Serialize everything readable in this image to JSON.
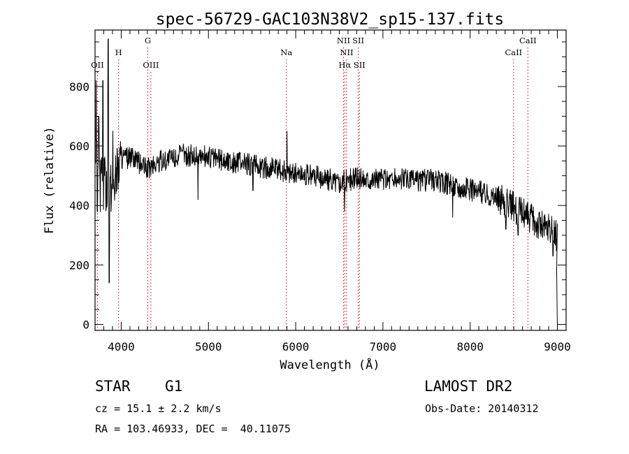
{
  "chart_data": {
    "type": "line",
    "title": "spec-56729-GAC103N38V2_sp15-137.fits",
    "xlabel": "Wavelength (Å)",
    "ylabel": "Flux (relative)",
    "xlim": [
      3700,
      9100
    ],
    "ylim": [
      -20,
      990
    ],
    "xticks": [
      4000,
      5000,
      6000,
      7000,
      8000,
      9000
    ],
    "yticks": [
      0,
      200,
      400,
      600,
      800
    ],
    "line_color": "#000000",
    "marker_color": "#cc0000",
    "lines": [
      {
        "label": "OII",
        "x": 3727,
        "row": 3
      },
      {
        "label": "H",
        "x": 3970,
        "row": 2
      },
      {
        "label": "G",
        "x": 4305,
        "row": 1
      },
      {
        "label": "OIII",
        "x": 4340,
        "row": 3
      },
      {
        "label": "Na",
        "x": 5893,
        "row": 2
      },
      {
        "label": "NII",
        "x": 6548,
        "row": 1
      },
      {
        "label": "NII",
        "x": 6584,
        "row": 2
      },
      {
        "label": "Hα",
        "x": 6563,
        "row": 3
      },
      {
        "label": "SII",
        "x": 6717,
        "row": 1
      },
      {
        "label": "SII",
        "x": 6731,
        "row": 3
      },
      {
        "label": "CaII",
        "x": 8498,
        "row": 2
      },
      {
        "label": "CaII",
        "x": 8662,
        "row": 1
      }
    ],
    "spectrum_envelope": {
      "x": [
        3700,
        3750,
        3800,
        3900,
        4000,
        4100,
        4300,
        4500,
        4700,
        5000,
        5300,
        5600,
        5900,
        6200,
        6500,
        6700,
        7000,
        7300,
        7600,
        7900,
        8200,
        8400,
        8600,
        8800,
        9000
      ],
      "y": [
        640,
        520,
        470,
        480,
        560,
        560,
        525,
        555,
        570,
        565,
        545,
        530,
        515,
        500,
        480,
        490,
        490,
        485,
        485,
        460,
        440,
        410,
        375,
        340,
        300
      ]
    }
  },
  "info": {
    "object_type": "STAR",
    "subclass": "G1",
    "survey": "LAMOST DR2",
    "redshift": "cz = 15.1 ± 2.2 km/s",
    "obs_date": "Obs-Date: 20140312",
    "coords": "RA = 103.46933, DEC =  40.11075"
  }
}
